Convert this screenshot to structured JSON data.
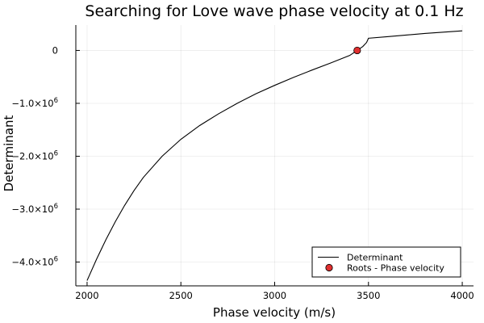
{
  "chart_data": {
    "type": "line",
    "title": "Searching for Love wave phase velocity at 0.1 Hz",
    "xlabel": "Phase velocity (m/s)",
    "ylabel": "Determinant",
    "xlim": [
      1940,
      4060
    ],
    "ylim": [
      -4450000.0,
      480000.0
    ],
    "x_ticks": [
      {
        "value": 2000,
        "label": "2000"
      },
      {
        "value": 2500,
        "label": "2500"
      },
      {
        "value": 3000,
        "label": "3000"
      },
      {
        "value": 3500,
        "label": "3500"
      },
      {
        "value": 4000,
        "label": "4000"
      }
    ],
    "y_ticks": [
      {
        "value": 0,
        "mantissa": "0",
        "exponent": ""
      },
      {
        "value": -1000000,
        "mantissa": "−1.0×10",
        "exponent": "6"
      },
      {
        "value": -2000000,
        "mantissa": "−2.0×10",
        "exponent": "6"
      },
      {
        "value": -3000000,
        "mantissa": "−3.0×10",
        "exponent": "6"
      },
      {
        "value": -4000000,
        "mantissa": "−4.0×10",
        "exponent": "6"
      }
    ],
    "grid": true,
    "legend_position": "bottom-right",
    "series": [
      {
        "name": "Determinant",
        "type": "line",
        "color": "#000000",
        "x": [
          2000,
          2050,
          2100,
          2150,
          2200,
          2250,
          2300,
          2400,
          2500,
          2600,
          2700,
          2800,
          2900,
          3000,
          3100,
          3200,
          3300,
          3400,
          3440,
          3470,
          3490,
          3500,
          3600,
          3700,
          3800,
          3900,
          4000
        ],
        "y": [
          -4350000,
          -3950000,
          -3580000,
          -3240000,
          -2930000,
          -2650000,
          -2400000,
          -2000000,
          -1680000,
          -1420000,
          -1200000,
          -1000000,
          -820000,
          -660000,
          -510000,
          -370000,
          -235000,
          -95000,
          0,
          75000,
          150000,
          230000,
          260000,
          290000,
          320000,
          345000,
          370000
        ]
      },
      {
        "name": "Roots - Phase velocity",
        "type": "scatter",
        "color": "#e03030",
        "x": [
          3440
        ],
        "y": [
          0
        ]
      }
    ]
  }
}
